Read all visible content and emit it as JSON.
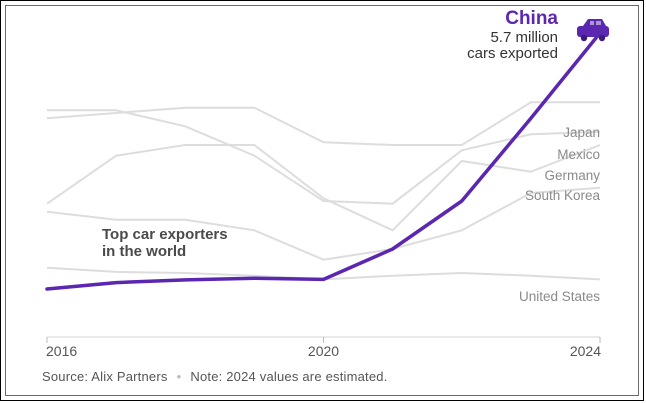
{
  "chart_data": {
    "type": "line",
    "x": [
      2016,
      2017,
      2018,
      2019,
      2020,
      2021,
      2022,
      2023,
      2024
    ],
    "xticks": [
      "2016",
      "2020",
      "2024"
    ],
    "xlim": [
      2016,
      2024
    ],
    "ylim": [
      0,
      6
    ],
    "grid": false,
    "highlight": {
      "name": "China",
      "value_label": "5.7 million",
      "value_label2": "cars exported",
      "values": [
        0.9,
        1.02,
        1.07,
        1.1,
        1.08,
        1.65,
        2.55,
        4.1,
        5.7
      ],
      "color": "#5b27b0"
    },
    "series": [
      {
        "name": "Japan",
        "values": [
          4.1,
          4.2,
          4.3,
          4.3,
          3.65,
          3.6,
          3.6,
          4.4,
          4.4
        ],
        "color": "#dddddd"
      },
      {
        "name": "Mexico",
        "values": [
          4.25,
          4.25,
          3.95,
          3.4,
          2.55,
          2.5,
          3.5,
          3.8,
          3.85
        ],
        "color": "#dddddd"
      },
      {
        "name": "Germany",
        "values": [
          2.5,
          3.4,
          3.6,
          3.6,
          2.6,
          2.0,
          3.3,
          3.1,
          3.6
        ],
        "color": "#dddddd"
      },
      {
        "name": "South Korea",
        "values": [
          2.35,
          2.2,
          2.2,
          2.0,
          1.45,
          1.65,
          2.0,
          2.7,
          2.8
        ],
        "color": "#dddddd"
      },
      {
        "name": "United States",
        "values": [
          1.3,
          1.22,
          1.2,
          1.15,
          1.08,
          1.15,
          1.2,
          1.15,
          1.08
        ],
        "color": "#dddddd"
      }
    ],
    "annotation": [
      "Top car exporters",
      "in the world"
    ],
    "icon": "car-icon"
  },
  "footer": {
    "source": "Source: Alix Partners",
    "note": "Note: 2024 values are estimated."
  }
}
